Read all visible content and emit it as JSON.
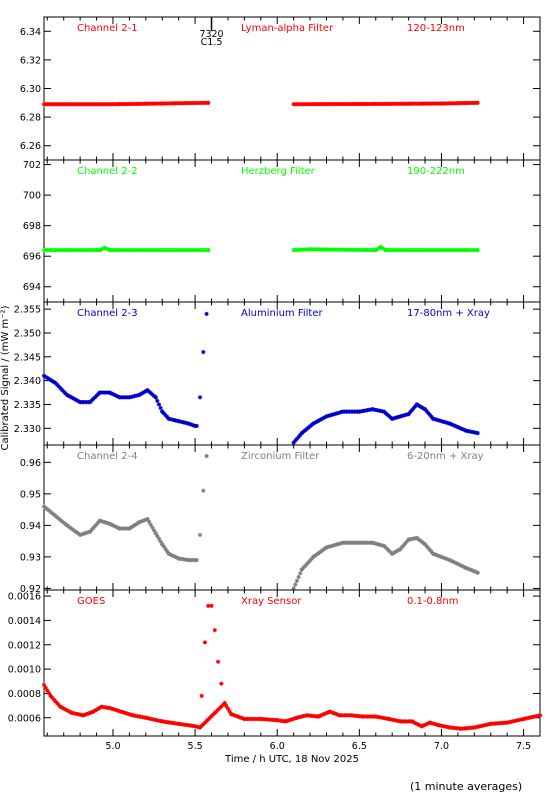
{
  "chart_data": {
    "type": "scatter",
    "x_label": "Time / h UTC, 18 Nov 2025",
    "y_label": "Calibrated Signal / (mW m⁻²)",
    "x_range": [
      4.58,
      7.6
    ],
    "x_ticks": [
      "5.0",
      "5.5",
      "6.0",
      "6.5",
      "7.0",
      "7.5"
    ],
    "x_tick_values": [
      5.0,
      5.5,
      6.0,
      6.5,
      7.0,
      7.5
    ],
    "footnote": "(1 minute averages)",
    "marker": {
      "time_label": "7320",
      "class_label": "C1.5",
      "x": 5.6
    },
    "panels": [
      {
        "key": "p1",
        "channel": "Channel 2-1",
        "filter": "Lyman-alpha Filter",
        "band": "120-123nm",
        "color": "#ff0000",
        "y_range": [
          6.25,
          6.35
        ],
        "y_ticks": [
          "6.26",
          "6.28",
          "6.30",
          "6.32",
          "6.34"
        ],
        "y_tick_values": [
          6.26,
          6.28,
          6.3,
          6.32,
          6.34
        ],
        "gaps": [
          [
            5.59,
            6.09
          ]
        ],
        "points": [
          [
            4.58,
            6.289
          ],
          [
            5.0,
            6.289
          ],
          [
            5.3,
            6.2895
          ],
          [
            5.58,
            6.29
          ],
          [
            6.1,
            6.289
          ],
          [
            6.6,
            6.2892
          ],
          [
            7.0,
            6.2895
          ],
          [
            7.22,
            6.29
          ]
        ]
      },
      {
        "key": "p2",
        "channel": "Channel 2-2",
        "filter": "Herzberg Filter",
        "band": "190-222nm",
        "color": "#00ff00",
        "y_range": [
          693.0,
          702.3
        ],
        "y_ticks": [
          "694",
          "696",
          "698",
          "700",
          "702"
        ],
        "y_tick_values": [
          694,
          696,
          698,
          700,
          702
        ],
        "gaps": [
          [
            5.59,
            6.09
          ]
        ],
        "points": [
          [
            4.58,
            696.4
          ],
          [
            4.92,
            696.4
          ],
          [
            4.95,
            696.55
          ],
          [
            4.98,
            696.4
          ],
          [
            5.58,
            696.4
          ],
          [
            6.1,
            696.4
          ],
          [
            6.2,
            696.45
          ],
          [
            6.6,
            696.4
          ],
          [
            6.63,
            696.6
          ],
          [
            6.66,
            696.4
          ],
          [
            7.22,
            696.4
          ]
        ]
      },
      {
        "key": "p3",
        "channel": "Channel 2-3",
        "filter": "Aluminium Filter",
        "band": "17-80nm + Xray",
        "color": "#0000cc",
        "y_range": [
          2.3265,
          2.3565
        ],
        "y_ticks": [
          "2.330",
          "2.335",
          "2.340",
          "2.345",
          "2.350",
          "2.355"
        ],
        "y_tick_values": [
          2.33,
          2.335,
          2.34,
          2.345,
          2.35,
          2.355
        ],
        "gaps": [
          [
            5.52,
            6.09
          ]
        ],
        "outliers": [
          [
            5.51,
            2.3305
          ],
          [
            5.53,
            2.3365
          ],
          [
            5.55,
            2.346
          ],
          [
            5.57,
            2.354
          ]
        ],
        "points": [
          [
            4.58,
            2.341
          ],
          [
            4.65,
            2.3395
          ],
          [
            4.72,
            2.337
          ],
          [
            4.8,
            2.3355
          ],
          [
            4.86,
            2.3355
          ],
          [
            4.92,
            2.3375
          ],
          [
            4.98,
            2.3375
          ],
          [
            5.04,
            2.3365
          ],
          [
            5.1,
            2.3365
          ],
          [
            5.16,
            2.337
          ],
          [
            5.21,
            2.338
          ],
          [
            5.26,
            2.3365
          ],
          [
            5.3,
            2.3335
          ],
          [
            5.34,
            2.332
          ],
          [
            5.4,
            2.3315
          ],
          [
            5.46,
            2.331
          ],
          [
            5.5,
            2.3305
          ],
          [
            6.1,
            2.327
          ],
          [
            6.15,
            2.329
          ],
          [
            6.22,
            2.331
          ],
          [
            6.3,
            2.3325
          ],
          [
            6.4,
            2.3335
          ],
          [
            6.5,
            2.3335
          ],
          [
            6.58,
            2.334
          ],
          [
            6.65,
            2.3335
          ],
          [
            6.7,
            2.332
          ],
          [
            6.75,
            2.3325
          ],
          [
            6.8,
            2.333
          ],
          [
            6.85,
            2.335
          ],
          [
            6.9,
            2.334
          ],
          [
            6.95,
            2.332
          ],
          [
            7.05,
            2.331
          ],
          [
            7.15,
            2.3295
          ],
          [
            7.22,
            2.329
          ]
        ]
      },
      {
        "key": "p4",
        "channel": "Channel 2-4",
        "filter": "Zirconium Filter",
        "band": "6-20nm + Xray",
        "color": "#808080",
        "y_range": [
          0.9195,
          0.9655
        ],
        "y_ticks": [
          "0.92",
          "0.93",
          "0.94",
          "0.95",
          "0.96"
        ],
        "y_tick_values": [
          0.92,
          0.93,
          0.94,
          0.95,
          0.96
        ],
        "gaps": [
          [
            5.52,
            6.09
          ]
        ],
        "outliers": [
          [
            5.51,
            0.929
          ],
          [
            5.53,
            0.937
          ],
          [
            5.55,
            0.951
          ],
          [
            5.57,
            0.962
          ]
        ],
        "points": [
          [
            4.58,
            0.946
          ],
          [
            4.65,
            0.943
          ],
          [
            4.72,
            0.94
          ],
          [
            4.8,
            0.937
          ],
          [
            4.86,
            0.938
          ],
          [
            4.92,
            0.9415
          ],
          [
            4.98,
            0.9405
          ],
          [
            5.04,
            0.939
          ],
          [
            5.1,
            0.939
          ],
          [
            5.16,
            0.941
          ],
          [
            5.21,
            0.942
          ],
          [
            5.26,
            0.9375
          ],
          [
            5.3,
            0.934
          ],
          [
            5.34,
            0.931
          ],
          [
            5.4,
            0.9295
          ],
          [
            5.46,
            0.929
          ],
          [
            5.5,
            0.929
          ],
          [
            6.1,
            0.92
          ],
          [
            6.15,
            0.926
          ],
          [
            6.22,
            0.93
          ],
          [
            6.3,
            0.933
          ],
          [
            6.4,
            0.9345
          ],
          [
            6.5,
            0.9345
          ],
          [
            6.58,
            0.9345
          ],
          [
            6.65,
            0.9335
          ],
          [
            6.7,
            0.931
          ],
          [
            6.75,
            0.9325
          ],
          [
            6.8,
            0.9355
          ],
          [
            6.85,
            0.936
          ],
          [
            6.9,
            0.934
          ],
          [
            6.95,
            0.931
          ],
          [
            7.05,
            0.929
          ],
          [
            7.15,
            0.9265
          ],
          [
            7.22,
            0.925
          ]
        ]
      },
      {
        "key": "p5",
        "channel": "GOES",
        "filter": "Xray Sensor",
        "band": "0.1-0.8nm",
        "color": "#ff0000",
        "y_range": [
          0.00045,
          0.00165
        ],
        "y_ticks": [
          "0.0006",
          "0.0008",
          "0.0010",
          "0.0012",
          "0.0014",
          "0.0016"
        ],
        "y_tick_values": [
          0.0006,
          0.0008,
          0.001,
          0.0012,
          0.0014,
          0.0016
        ],
        "outliers": [
          [
            5.54,
            0.00078
          ],
          [
            5.56,
            0.00122
          ],
          [
            5.58,
            0.00152
          ],
          [
            5.6,
            0.00152
          ],
          [
            5.62,
            0.00132
          ],
          [
            5.64,
            0.00106
          ],
          [
            5.66,
            0.00088
          ]
        ],
        "points": [
          [
            4.58,
            0.00087
          ],
          [
            4.62,
            0.00078
          ],
          [
            4.68,
            0.00069
          ],
          [
            4.75,
            0.00064
          ],
          [
            4.82,
            0.00062
          ],
          [
            4.88,
            0.00065
          ],
          [
            4.93,
            0.00069
          ],
          [
            4.98,
            0.00068
          ],
          [
            5.05,
            0.00065
          ],
          [
            5.12,
            0.00062
          ],
          [
            5.2,
            0.0006
          ],
          [
            5.3,
            0.00057
          ],
          [
            5.4,
            0.00055
          ],
          [
            5.5,
            0.00053
          ],
          [
            5.53,
            0.00052
          ],
          [
            5.68,
            0.00072
          ],
          [
            5.72,
            0.00063
          ],
          [
            5.8,
            0.00059
          ],
          [
            5.9,
            0.00059
          ],
          [
            6.0,
            0.00058
          ],
          [
            6.05,
            0.00057
          ],
          [
            6.12,
            0.0006
          ],
          [
            6.18,
            0.00062
          ],
          [
            6.25,
            0.00061
          ],
          [
            6.32,
            0.00065
          ],
          [
            6.38,
            0.00062
          ],
          [
            6.45,
            0.00062
          ],
          [
            6.52,
            0.00061
          ],
          [
            6.6,
            0.00061
          ],
          [
            6.68,
            0.00059
          ],
          [
            6.75,
            0.00057
          ],
          [
            6.82,
            0.00057
          ],
          [
            6.88,
            0.00053
          ],
          [
            6.93,
            0.00056
          ],
          [
            6.98,
            0.00054
          ],
          [
            7.05,
            0.00052
          ],
          [
            7.12,
            0.00051
          ],
          [
            7.2,
            0.00052
          ],
          [
            7.3,
            0.00055
          ],
          [
            7.4,
            0.00056
          ],
          [
            7.5,
            0.00059
          ],
          [
            7.6,
            0.00062
          ]
        ]
      }
    ]
  }
}
